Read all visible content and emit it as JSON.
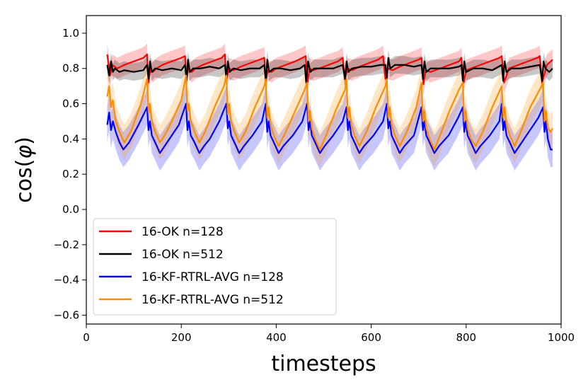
{
  "chart_data": {
    "type": "line",
    "title": "",
    "xlabel": "timesteps",
    "ylabel_prefix": "cos(",
    "ylabel_symbol": "φ",
    "ylabel_suffix": ")",
    "xlim": [
      0,
      1000
    ],
    "ylim": [
      -0.65,
      1.1
    ],
    "xticks": [
      0,
      200,
      400,
      600,
      800,
      1000
    ],
    "xtick_labels": [
      "0",
      "200",
      "400",
      "600",
      "800",
      "1000"
    ],
    "yticks": [
      -0.6,
      -0.4,
      -0.2,
      0.0,
      0.2,
      0.4,
      0.6,
      0.8,
      1.0
    ],
    "ytick_labels": [
      "−0.6",
      "−0.4",
      "−0.2",
      "0.0",
      "0.2",
      "0.4",
      "0.6",
      "0.8",
      "1.0"
    ],
    "grid": false,
    "legend_position": "lower-left",
    "series": [
      {
        "name": "16-OK n=128",
        "color": "#ff0000",
        "band_color": "#ff0000",
        "x": [
          44,
          50,
          55,
          65,
          80,
          100,
          120,
          128,
          131,
          135,
          140,
          148,
          160,
          180,
          200,
          208,
          211,
          215,
          222,
          230,
          245,
          265,
          285,
          292,
          295,
          300,
          310,
          325,
          345,
          365,
          375,
          378,
          382,
          390,
          400,
          420,
          440,
          455,
          462,
          466,
          470,
          478,
          490,
          510,
          530,
          540,
          545,
          550,
          560,
          575,
          595,
          615,
          625,
          630,
          635,
          645,
          660,
          680,
          700,
          706,
          710,
          715,
          725,
          745,
          765,
          785,
          790,
          795,
          800,
          810,
          830,
          850,
          870,
          875,
          880,
          890,
          910,
          930,
          950,
          955,
          960,
          970,
          982
        ],
        "y": [
          0.88,
          0.76,
          0.82,
          0.8,
          0.82,
          0.84,
          0.86,
          0.88,
          0.72,
          0.8,
          0.78,
          0.8,
          0.82,
          0.84,
          0.86,
          0.87,
          0.74,
          0.8,
          0.78,
          0.8,
          0.82,
          0.84,
          0.86,
          0.88,
          0.73,
          0.8,
          0.79,
          0.81,
          0.83,
          0.85,
          0.86,
          0.72,
          0.79,
          0.78,
          0.8,
          0.82,
          0.84,
          0.86,
          0.87,
          0.72,
          0.8,
          0.79,
          0.8,
          0.82,
          0.84,
          0.86,
          0.74,
          0.8,
          0.79,
          0.81,
          0.83,
          0.85,
          0.87,
          0.74,
          0.8,
          0.79,
          0.81,
          0.83,
          0.85,
          0.86,
          0.71,
          0.79,
          0.78,
          0.8,
          0.82,
          0.84,
          0.86,
          0.72,
          0.79,
          0.8,
          0.82,
          0.84,
          0.86,
          0.87,
          0.72,
          0.8,
          0.82,
          0.84,
          0.86,
          0.87,
          0.72,
          0.82,
          0.85
        ],
        "spread": 0.06
      },
      {
        "name": "16-OK n=512",
        "color": "#000000",
        "band_color": "#000000",
        "x": [
          44,
          48,
          52,
          56,
          60,
          70,
          80,
          100,
          120,
          128,
          131,
          134,
          138,
          145,
          160,
          180,
          200,
          208,
          211,
          214,
          218,
          225,
          240,
          260,
          280,
          292,
          295,
          298,
          302,
          310,
          325,
          345,
          365,
          375,
          378,
          381,
          385,
          395,
          410,
          430,
          450,
          460,
          463,
          467,
          472,
          480,
          500,
          520,
          540,
          545,
          548,
          552,
          560,
          580,
          600,
          620,
          630,
          633,
          636,
          640,
          650,
          670,
          690,
          706,
          709,
          712,
          716,
          725,
          745,
          765,
          785,
          790,
          793,
          796,
          800,
          815,
          835,
          855,
          875,
          878,
          881,
          885,
          895,
          915,
          935,
          955,
          960,
          963,
          967,
          975,
          982
        ],
        "y": [
          0.82,
          0.76,
          0.84,
          0.78,
          0.8,
          0.78,
          0.79,
          0.78,
          0.79,
          0.82,
          0.74,
          0.84,
          0.78,
          0.8,
          0.79,
          0.8,
          0.79,
          0.82,
          0.73,
          0.85,
          0.78,
          0.8,
          0.8,
          0.81,
          0.8,
          0.82,
          0.74,
          0.84,
          0.78,
          0.8,
          0.79,
          0.8,
          0.8,
          0.82,
          0.72,
          0.85,
          0.78,
          0.8,
          0.8,
          0.79,
          0.8,
          0.82,
          0.72,
          0.84,
          0.78,
          0.8,
          0.8,
          0.8,
          0.82,
          0.74,
          0.84,
          0.78,
          0.8,
          0.81,
          0.81,
          0.82,
          0.82,
          0.74,
          0.86,
          0.8,
          0.82,
          0.82,
          0.81,
          0.82,
          0.74,
          0.84,
          0.78,
          0.8,
          0.8,
          0.8,
          0.81,
          0.82,
          0.73,
          0.84,
          0.78,
          0.8,
          0.8,
          0.79,
          0.82,
          0.73,
          0.84,
          0.78,
          0.8,
          0.8,
          0.81,
          0.82,
          0.73,
          0.84,
          0.8,
          0.78,
          0.8
        ],
        "spread": 0.05
      },
      {
        "name": "16-KF-RTRL-AVG n=128",
        "color": "#0000ff",
        "band_color": "#0000ff",
        "x": [
          44,
          48,
          52,
          56,
          62,
          70,
          78,
          90,
          110,
          128,
          131,
          134,
          138,
          145,
          155,
          165,
          175,
          195,
          210,
          213,
          216,
          220,
          228,
          238,
          248,
          260,
          280,
          295,
          298,
          301,
          305,
          312,
          322,
          332,
          350,
          370,
          378,
          381,
          384,
          388,
          395,
          405,
          415,
          435,
          455,
          465,
          468,
          471,
          475,
          482,
          492,
          502,
          520,
          540,
          548,
          551,
          554,
          558,
          565,
          575,
          585,
          605,
          625,
          633,
          636,
          639,
          643,
          650,
          660,
          670,
          690,
          706,
          709,
          712,
          716,
          723,
          733,
          743,
          763,
          783,
          793,
          796,
          799,
          803,
          810,
          820,
          830,
          850,
          870,
          875,
          878,
          881,
          885,
          892,
          902,
          912,
          932,
          952,
          962,
          965,
          968,
          972,
          978,
          982
        ],
        "y": [
          0.48,
          0.55,
          0.45,
          0.5,
          0.44,
          0.38,
          0.34,
          0.38,
          0.48,
          0.58,
          0.45,
          0.5,
          0.42,
          0.38,
          0.32,
          0.36,
          0.4,
          0.48,
          0.6,
          0.45,
          0.5,
          0.42,
          0.38,
          0.32,
          0.36,
          0.4,
          0.5,
          0.6,
          0.46,
          0.5,
          0.42,
          0.38,
          0.32,
          0.36,
          0.42,
          0.5,
          0.6,
          0.44,
          0.5,
          0.42,
          0.38,
          0.32,
          0.36,
          0.42,
          0.5,
          0.6,
          0.45,
          0.5,
          0.42,
          0.38,
          0.32,
          0.36,
          0.42,
          0.5,
          0.58,
          0.45,
          0.5,
          0.42,
          0.38,
          0.32,
          0.36,
          0.42,
          0.5,
          0.6,
          0.46,
          0.5,
          0.42,
          0.38,
          0.32,
          0.36,
          0.42,
          0.58,
          0.45,
          0.5,
          0.42,
          0.38,
          0.32,
          0.36,
          0.42,
          0.52,
          0.58,
          0.44,
          0.5,
          0.42,
          0.38,
          0.32,
          0.36,
          0.42,
          0.5,
          0.6,
          0.45,
          0.5,
          0.42,
          0.38,
          0.32,
          0.36,
          0.44,
          0.52,
          0.58,
          0.44,
          0.5,
          0.4,
          0.34,
          0.34
        ],
        "spread": 0.1
      },
      {
        "name": "16-KF-RTRL-AVG n=512",
        "color": "#ff8c00",
        "band_color": "#ff8c00",
        "x": [
          44,
          48,
          52,
          56,
          62,
          70,
          80,
          95,
          115,
          128,
          131,
          134,
          138,
          145,
          155,
          165,
          180,
          200,
          210,
          213,
          216,
          220,
          228,
          238,
          250,
          270,
          290,
          295,
          298,
          301,
          305,
          312,
          322,
          335,
          355,
          375,
          378,
          381,
          384,
          388,
          395,
          405,
          420,
          440,
          460,
          465,
          468,
          471,
          475,
          482,
          492,
          505,
          525,
          545,
          548,
          551,
          554,
          558,
          565,
          575,
          590,
          610,
          630,
          633,
          636,
          639,
          643,
          650,
          660,
          675,
          695,
          706,
          709,
          712,
          716,
          723,
          733,
          745,
          765,
          785,
          793,
          796,
          799,
          803,
          810,
          820,
          835,
          855,
          875,
          878,
          881,
          885,
          892,
          902,
          915,
          935,
          955,
          962,
          965,
          968,
          972,
          978,
          982
        ],
        "y": [
          0.64,
          0.7,
          0.58,
          0.62,
          0.5,
          0.44,
          0.38,
          0.45,
          0.6,
          0.74,
          0.55,
          0.6,
          0.5,
          0.44,
          0.38,
          0.42,
          0.5,
          0.62,
          0.76,
          0.56,
          0.6,
          0.5,
          0.44,
          0.38,
          0.44,
          0.58,
          0.7,
          0.76,
          0.54,
          0.6,
          0.5,
          0.44,
          0.38,
          0.44,
          0.58,
          0.7,
          0.74,
          0.52,
          0.58,
          0.48,
          0.42,
          0.36,
          0.44,
          0.56,
          0.68,
          0.72,
          0.5,
          0.56,
          0.46,
          0.4,
          0.34,
          0.42,
          0.56,
          0.68,
          0.74,
          0.52,
          0.58,
          0.48,
          0.42,
          0.36,
          0.44,
          0.58,
          0.7,
          0.74,
          0.52,
          0.58,
          0.48,
          0.42,
          0.36,
          0.44,
          0.58,
          0.72,
          0.5,
          0.56,
          0.46,
          0.4,
          0.34,
          0.42,
          0.56,
          0.68,
          0.72,
          0.5,
          0.56,
          0.46,
          0.4,
          0.36,
          0.44,
          0.58,
          0.7,
          0.52,
          0.58,
          0.48,
          0.42,
          0.36,
          0.44,
          0.58,
          0.68,
          0.72,
          0.5,
          0.56,
          0.46,
          0.44,
          0.46
        ],
        "spread": 0.1
      }
    ]
  }
}
